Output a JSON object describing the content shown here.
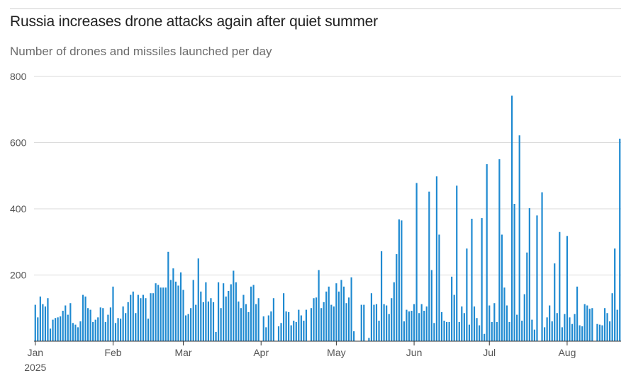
{
  "title": "Russia increases drone attacks again after quiet summer",
  "subtitle": "Number of drones and missiles launched per day",
  "colors": {
    "bar": "#1f8ad1",
    "grid": "#d9d9d9",
    "axis": "#333333"
  },
  "chart_data": {
    "type": "bar",
    "title": "Russia increases drone attacks again after quiet summer",
    "subtitle": "Number of drones and missiles launched per day",
    "xlabel": "",
    "ylabel": "Number of drones and missiles launched per day",
    "ylim": [
      0,
      800
    ],
    "yticks": [
      200,
      400,
      600,
      800
    ],
    "grid": true,
    "x_start": "2025-01-01",
    "x_end": "2025-08-31",
    "month_labels": [
      "Jan",
      "Feb",
      "Mar",
      "Apr",
      "May",
      "Jun",
      "Jul",
      "Aug"
    ],
    "year_label": "2025",
    "values": [
      110,
      72,
      135,
      112,
      105,
      130,
      38,
      65,
      70,
      72,
      75,
      92,
      108,
      80,
      115,
      55,
      50,
      42,
      60,
      140,
      135,
      100,
      95,
      58,
      65,
      72,
      102,
      100,
      58,
      80,
      102,
      165,
      55,
      70,
      68,
      105,
      85,
      118,
      140,
      150,
      85,
      140,
      130,
      140,
      130,
      68,
      145,
      145,
      175,
      170,
      162,
      162,
      162,
      270,
      185,
      220,
      180,
      168,
      208,
      155,
      78,
      82,
      100,
      185,
      110,
      250,
      150,
      118,
      178,
      120,
      130,
      118,
      28,
      178,
      100,
      175,
      135,
      152,
      172,
      213,
      178,
      120,
      100,
      140,
      112,
      88,
      165,
      170,
      112,
      130,
      0,
      75,
      42,
      78,
      90,
      130,
      0,
      45,
      55,
      145,
      90,
      88,
      48,
      62,
      58,
      95,
      78,
      62,
      95,
      0,
      100,
      130,
      132,
      215,
      100,
      118,
      150,
      165,
      110,
      105,
      175,
      150,
      185,
      165,
      115,
      132,
      193,
      30,
      0,
      0,
      110,
      110,
      0,
      10,
      145,
      110,
      112,
      62,
      272,
      112,
      108,
      82,
      130,
      178,
      263,
      368,
      365,
      60,
      95,
      90,
      92,
      112,
      478,
      85,
      112,
      92,
      105,
      452,
      215,
      55,
      498,
      322,
      88,
      62,
      58,
      58,
      195,
      140,
      470,
      58,
      105,
      85,
      280,
      50,
      370,
      105,
      70,
      48,
      372,
      22,
      535,
      108,
      58,
      115,
      58,
      550,
      322,
      162,
      108,
      58,
      742,
      415,
      80,
      622,
      62,
      142,
      268,
      402,
      65,
      35,
      380,
      0,
      450,
      42,
      72,
      108,
      60,
      235,
      85,
      330,
      42,
      82,
      318,
      72,
      52,
      82,
      165,
      48,
      45,
      112,
      108,
      98,
      100,
      0,
      52,
      50,
      48,
      100,
      85,
      60,
      145,
      280,
      95,
      612
    ]
  }
}
